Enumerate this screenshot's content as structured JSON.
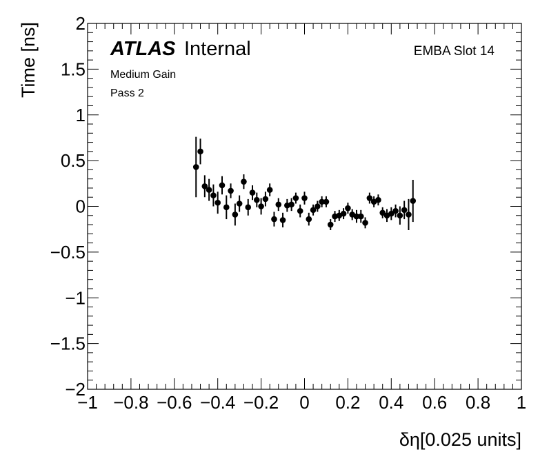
{
  "chart_data": {
    "type": "scatter",
    "xlabel": "δη[0.025 units]",
    "ylabel": "Time [ns]",
    "xlim": [
      -1,
      1
    ],
    "ylim": [
      -2,
      2
    ],
    "xticks": [
      "−1",
      "−0.8",
      "−0.6",
      "−0.4",
      "−0.2",
      "0",
      "0.2",
      "0.4",
      "0.6",
      "0.8",
      "1"
    ],
    "yticks": [
      "−2",
      "−1.5",
      "−1",
      "−0.5",
      "0",
      "0.5",
      "1",
      "1.5",
      "2"
    ],
    "experiment": "ATLAS",
    "status": "Internal",
    "gain": "Medium Gain",
    "pass": "Pass 2",
    "module": "EMBA Slot 14",
    "marker": "filled-circle",
    "color": "#000000",
    "series": [
      {
        "points": [
          {
            "x": -0.5,
            "y": 0.43,
            "err": 0.33
          },
          {
            "x": -0.48,
            "y": 0.6,
            "err": 0.14
          },
          {
            "x": -0.46,
            "y": 0.22,
            "err": 0.12
          },
          {
            "x": -0.44,
            "y": 0.18,
            "err": 0.12
          },
          {
            "x": -0.42,
            "y": 0.12,
            "err": 0.12
          },
          {
            "x": -0.4,
            "y": 0.04,
            "err": 0.12
          },
          {
            "x": -0.38,
            "y": 0.23,
            "err": 0.1
          },
          {
            "x": -0.36,
            "y": -0.01,
            "err": 0.13
          },
          {
            "x": -0.34,
            "y": 0.17,
            "err": 0.08
          },
          {
            "x": -0.32,
            "y": -0.09,
            "err": 0.12
          },
          {
            "x": -0.3,
            "y": 0.03,
            "err": 0.09
          },
          {
            "x": -0.28,
            "y": 0.27,
            "err": 0.08
          },
          {
            "x": -0.26,
            "y": -0.01,
            "err": 0.09
          },
          {
            "x": -0.24,
            "y": 0.15,
            "err": 0.08
          },
          {
            "x": -0.22,
            "y": 0.07,
            "err": 0.08
          },
          {
            "x": -0.2,
            "y": 0.0,
            "err": 0.09
          },
          {
            "x": -0.18,
            "y": 0.08,
            "err": 0.08
          },
          {
            "x": -0.16,
            "y": 0.18,
            "err": 0.07
          },
          {
            "x": -0.14,
            "y": -0.14,
            "err": 0.08
          },
          {
            "x": -0.12,
            "y": 0.02,
            "err": 0.07
          },
          {
            "x": -0.1,
            "y": -0.15,
            "err": 0.08
          },
          {
            "x": -0.08,
            "y": 0.01,
            "err": 0.07
          },
          {
            "x": -0.06,
            "y": 0.02,
            "err": 0.07
          },
          {
            "x": -0.04,
            "y": 0.09,
            "err": 0.06
          },
          {
            "x": -0.02,
            "y": -0.05,
            "err": 0.07
          },
          {
            "x": 0.0,
            "y": 0.09,
            "err": 0.07
          },
          {
            "x": 0.02,
            "y": -0.14,
            "err": 0.07
          },
          {
            "x": 0.04,
            "y": -0.04,
            "err": 0.06
          },
          {
            "x": 0.06,
            "y": 0.0,
            "err": 0.06
          },
          {
            "x": 0.08,
            "y": 0.05,
            "err": 0.06
          },
          {
            "x": 0.1,
            "y": 0.05,
            "err": 0.06
          },
          {
            "x": 0.12,
            "y": -0.2,
            "err": 0.06
          },
          {
            "x": 0.14,
            "y": -0.11,
            "err": 0.06
          },
          {
            "x": 0.16,
            "y": -0.1,
            "err": 0.06
          },
          {
            "x": 0.18,
            "y": -0.08,
            "err": 0.06
          },
          {
            "x": 0.2,
            "y": -0.02,
            "err": 0.06
          },
          {
            "x": 0.22,
            "y": -0.09,
            "err": 0.06
          },
          {
            "x": 0.24,
            "y": -0.11,
            "err": 0.07
          },
          {
            "x": 0.26,
            "y": -0.11,
            "err": 0.07
          },
          {
            "x": 0.28,
            "y": -0.18,
            "err": 0.06
          },
          {
            "x": 0.3,
            "y": 0.09,
            "err": 0.06
          },
          {
            "x": 0.32,
            "y": 0.05,
            "err": 0.06
          },
          {
            "x": 0.34,
            "y": 0.07,
            "err": 0.06
          },
          {
            "x": 0.36,
            "y": -0.07,
            "err": 0.06
          },
          {
            "x": 0.38,
            "y": -0.1,
            "err": 0.07
          },
          {
            "x": 0.4,
            "y": -0.08,
            "err": 0.07
          },
          {
            "x": 0.42,
            "y": -0.05,
            "err": 0.07
          },
          {
            "x": 0.44,
            "y": -0.1,
            "err": 0.1
          },
          {
            "x": 0.46,
            "y": -0.04,
            "err": 0.1
          },
          {
            "x": 0.48,
            "y": -0.09,
            "err": 0.17
          },
          {
            "x": 0.5,
            "y": 0.06,
            "err": 0.23
          }
        ]
      }
    ]
  }
}
